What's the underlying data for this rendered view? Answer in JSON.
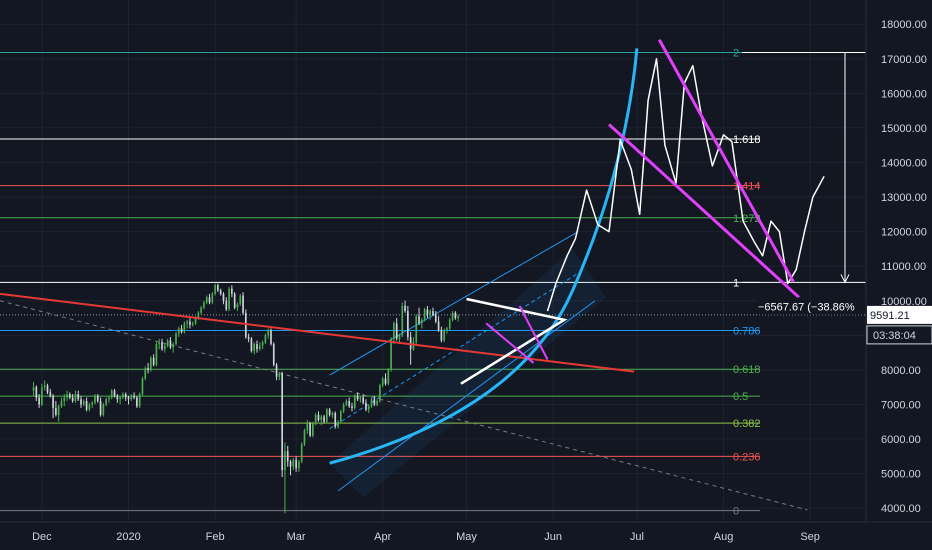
{
  "chart_data": {
    "type": "candlestick",
    "title": "",
    "xlabel": "",
    "ylabel": "",
    "ylim": [
      3600,
      18700
    ],
    "y_ticks": [
      4000,
      5000,
      6000,
      7000,
      8000,
      9000,
      10000,
      11000,
      12000,
      13000,
      14000,
      15000,
      16000,
      17000,
      18000
    ],
    "y_tick_labels": [
      "4000.00",
      "5000.00",
      "6000.00",
      "7000.00",
      "8000.00",
      "9000.00",
      "10000.00",
      "11000.00",
      "12000.00",
      "13000.00",
      "14000.00",
      "15000.00",
      "16000.00",
      "17000.00",
      "18000.00"
    ],
    "x_ticks": [
      {
        "date": "2019-12-01",
        "label": "Dec"
      },
      {
        "date": "2020-01-01",
        "label": "2020"
      },
      {
        "date": "2020-02-01",
        "label": "Feb"
      },
      {
        "date": "2020-03-01",
        "label": "Mar"
      },
      {
        "date": "2020-04-01",
        "label": "Apr"
      },
      {
        "date": "2020-05-01",
        "label": "May"
      },
      {
        "date": "2020-06-01",
        "label": "Jun"
      },
      {
        "date": "2020-07-01",
        "label": "Jul"
      },
      {
        "date": "2020-08-01",
        "label": "Aug"
      },
      {
        "date": "2020-09-01",
        "label": "Sep"
      }
    ],
    "x_range": [
      "2019-11-16",
      "2020-09-21"
    ],
    "fib_levels": [
      {
        "ratio": "2",
        "price": 17180,
        "color": "#26a69a"
      },
      {
        "ratio": "1.618",
        "price": 14680,
        "color": "#ffffff"
      },
      {
        "ratio": "1.414",
        "price": 13330,
        "color": "#ef5350"
      },
      {
        "ratio": "1.272",
        "price": 12400,
        "color": "#4caf50"
      },
      {
        "ratio": "1",
        "price": 10530,
        "color": "#ffffff"
      },
      {
        "ratio": "0.786",
        "price": 9140,
        "color": "#2196f3"
      },
      {
        "ratio": "0.618",
        "price": 8020,
        "color": "#4caf50"
      },
      {
        "ratio": "0.5",
        "price": 7240,
        "color": "#4caf50"
      },
      {
        "ratio": "0.382",
        "price": 6460,
        "color": "#8bc34a"
      },
      {
        "ratio": "0.236",
        "price": 5500,
        "color": "#ef5350"
      },
      {
        "ratio": "0",
        "price": 3930,
        "color": "#787b86"
      }
    ],
    "current_price": {
      "value": "9591.21",
      "countdown": "03:38:04"
    },
    "measure_label": "−6567.67 (−38.86%",
    "candles": [
      [
        7400,
        7650,
        7250,
        7500
      ],
      [
        7500,
        7550,
        7100,
        7200
      ],
      [
        7200,
        7300,
        6900,
        7000
      ],
      [
        7000,
        7600,
        6950,
        7500
      ],
      [
        7500,
        7700,
        7400,
        7550
      ],
      [
        7550,
        7600,
        7300,
        7350
      ],
      [
        7350,
        7450,
        7200,
        7250
      ],
      [
        7250,
        7300,
        6600,
        6900
      ],
      [
        6900,
        7100,
        6650,
        6700
      ],
      [
        6700,
        7000,
        6500,
        6950
      ],
      [
        6950,
        7200,
        6900,
        7100
      ],
      [
        7100,
        7300,
        6950,
        7200
      ],
      [
        7200,
        7400,
        7100,
        7300
      ],
      [
        7300,
        7350,
        7150,
        7200
      ],
      [
        7200,
        7300,
        7050,
        7100
      ],
      [
        7100,
        7400,
        7050,
        7300
      ],
      [
        7300,
        7400,
        7100,
        7150
      ],
      [
        7150,
        7250,
        6900,
        7000
      ],
      [
        7000,
        7150,
        6950,
        7100
      ],
      [
        7100,
        7200,
        6800,
        6850
      ],
      [
        6850,
        7050,
        6800,
        7000
      ],
      [
        7000,
        7100,
        6900,
        7050
      ],
      [
        7050,
        7300,
        7000,
        7250
      ],
      [
        7250,
        7300,
        7050,
        7100
      ],
      [
        7100,
        7200,
        6650,
        6700
      ],
      [
        6700,
        7050,
        6650,
        7000
      ],
      [
        7000,
        7200,
        6950,
        7150
      ],
      [
        7150,
        7250,
        7050,
        7200
      ],
      [
        7200,
        7450,
        7150,
        7400
      ],
      [
        7400,
        7450,
        7200,
        7250
      ],
      [
        7250,
        7300,
        7050,
        7150
      ],
      [
        7150,
        7250,
        7000,
        7200
      ],
      [
        7200,
        7350,
        7150,
        7300
      ],
      [
        7300,
        7350,
        7100,
        7200
      ],
      [
        7200,
        7250,
        7000,
        7150
      ],
      [
        7150,
        7300,
        7100,
        7250
      ],
      [
        7250,
        7350,
        7150,
        7200
      ],
      [
        7200,
        7250,
        6900,
        6950
      ],
      [
        6950,
        7350,
        6900,
        7300
      ],
      [
        7300,
        7800,
        7250,
        7750
      ],
      [
        7750,
        8100,
        7700,
        8050
      ],
      [
        8050,
        8200,
        7900,
        8000
      ],
      [
        8000,
        8400,
        7950,
        8350
      ],
      [
        8350,
        8450,
        8100,
        8150
      ],
      [
        8150,
        8800,
        8100,
        8750
      ],
      [
        8750,
        8900,
        8600,
        8800
      ],
      [
        8800,
        8900,
        8550,
        8600
      ],
      [
        8600,
        8750,
        8500,
        8700
      ],
      [
        8700,
        8900,
        8650,
        8850
      ],
      [
        8850,
        8950,
        8600,
        8650
      ],
      [
        8650,
        8800,
        8500,
        8750
      ],
      [
        8750,
        9100,
        8700,
        9050
      ],
      [
        9050,
        9250,
        8950,
        9200
      ],
      [
        9200,
        9300,
        9050,
        9100
      ],
      [
        9100,
        9400,
        9050,
        9350
      ],
      [
        9350,
        9450,
        9200,
        9400
      ],
      [
        9400,
        9500,
        9200,
        9300
      ],
      [
        9300,
        9400,
        9250,
        9350
      ],
      [
        9350,
        9550,
        9300,
        9500
      ],
      [
        9500,
        9700,
        9450,
        9650
      ],
      [
        9650,
        9850,
        9600,
        9800
      ],
      [
        9800,
        10000,
        9750,
        9950
      ],
      [
        9950,
        10150,
        9900,
        10100
      ],
      [
        10100,
        10200,
        9900,
        9950
      ],
      [
        9950,
        10250,
        9900,
        10200
      ],
      [
        10200,
        10500,
        10150,
        10450
      ],
      [
        10450,
        10500,
        10250,
        10300
      ],
      [
        10300,
        10350,
        10150,
        10200
      ],
      [
        10200,
        10250,
        9900,
        10000
      ],
      [
        10000,
        10100,
        9700,
        9750
      ],
      [
        9750,
        10400,
        9700,
        10350
      ],
      [
        10350,
        10450,
        10100,
        10200
      ],
      [
        10200,
        10250,
        9750,
        9800
      ],
      [
        9800,
        9950,
        9700,
        9900
      ],
      [
        9900,
        10200,
        9850,
        10150
      ],
      [
        10150,
        10250,
        9600,
        9650
      ],
      [
        9650,
        9750,
        8900,
        8950
      ],
      [
        8950,
        9050,
        8800,
        8900
      ],
      [
        8900,
        8950,
        8500,
        8550
      ],
      [
        8550,
        8800,
        8450,
        8750
      ],
      [
        8750,
        8850,
        8500,
        8600
      ],
      [
        8600,
        8800,
        8550,
        8700
      ],
      [
        8700,
        8850,
        8600,
        8800
      ],
      [
        8800,
        9050,
        8750,
        9000
      ],
      [
        9000,
        9200,
        8900,
        9150
      ],
      [
        9150,
        9200,
        8700,
        8750
      ],
      [
        8750,
        8800,
        8100,
        8150
      ],
      [
        8150,
        8200,
        7700,
        7800
      ],
      [
        7800,
        7950,
        7700,
        7900
      ],
      [
        7900,
        7950,
        4900,
        5100
      ],
      [
        5100,
        5900,
        3850,
        5650
      ],
      [
        5650,
        5800,
        5200,
        5350
      ],
      [
        5350,
        5400,
        4950,
        5200
      ],
      [
        5200,
        5450,
        5100,
        5400
      ],
      [
        5400,
        5500,
        5050,
        5150
      ],
      [
        5150,
        5400,
        5050,
        5350
      ],
      [
        5350,
        5900,
        5300,
        5850
      ],
      [
        5850,
        6300,
        5800,
        6250
      ],
      [
        6250,
        6550,
        6150,
        6450
      ],
      [
        6450,
        6500,
        6050,
        6100
      ],
      [
        6100,
        6500,
        6050,
        6450
      ],
      [
        6450,
        6750,
        6400,
        6700
      ],
      [
        6700,
        6800,
        6500,
        6550
      ],
      [
        6550,
        6700,
        6400,
        6650
      ],
      [
        6650,
        6700,
        6450,
        6500
      ],
      [
        6500,
        6900,
        6450,
        6850
      ],
      [
        6850,
        6900,
        6650,
        6700
      ],
      [
        6700,
        6800,
        6600,
        6750
      ],
      [
        6750,
        6800,
        6300,
        6350
      ],
      [
        6350,
        6550,
        6300,
        6500
      ],
      [
        6500,
        6850,
        6450,
        6800
      ],
      [
        6800,
        7050,
        6750,
        7000
      ],
      [
        7000,
        7150,
        6950,
        7100
      ],
      [
        7100,
        7200,
        6900,
        6950
      ],
      [
        6950,
        7050,
        6800,
        6900
      ],
      [
        6900,
        7300,
        6850,
        7250
      ],
      [
        7250,
        7350,
        7100,
        7150
      ],
      [
        7150,
        7250,
        7050,
        7200
      ],
      [
        7200,
        7300,
        7000,
        7050
      ],
      [
        7050,
        7150,
        6800,
        6850
      ],
      [
        6850,
        7000,
        6750,
        6950
      ],
      [
        6950,
        7200,
        6900,
        7150
      ],
      [
        7150,
        7250,
        6950,
        7000
      ],
      [
        7000,
        7150,
        6950,
        7100
      ],
      [
        7100,
        7600,
        7050,
        7550
      ],
      [
        7550,
        7800,
        7500,
        7750
      ],
      [
        7750,
        7900,
        7550,
        7600
      ],
      [
        7600,
        8050,
        7550,
        8000
      ],
      [
        8000,
        8950,
        7950,
        8900
      ],
      [
        8900,
        9400,
        8750,
        9350
      ],
      [
        9350,
        9500,
        8850,
        8900
      ],
      [
        8900,
        9050,
        8750,
        9000
      ],
      [
        9000,
        9950,
        8950,
        9850
      ],
      [
        9850,
        10000,
        9650,
        9700
      ],
      [
        9700,
        9850,
        8850,
        8950
      ],
      [
        8950,
        9100,
        8150,
        8600
      ],
      [
        8600,
        8950,
        8550,
        8800
      ],
      [
        8800,
        9600,
        8750,
        9550
      ],
      [
        9550,
        9800,
        9300,
        9350
      ],
      [
        9350,
        9500,
        9200,
        9450
      ],
      [
        9450,
        9800,
        9400,
        9750
      ],
      [
        9750,
        9850,
        9500,
        9600
      ],
      [
        9600,
        9750,
        9450,
        9700
      ],
      [
        9700,
        9800,
        9550,
        9600
      ],
      [
        9600,
        9700,
        9350,
        9400
      ],
      [
        9400,
        9550,
        9100,
        9150
      ],
      [
        9150,
        9250,
        8800,
        8850
      ],
      [
        8850,
        9200,
        8800,
        9150
      ],
      [
        9150,
        9250,
        9050,
        9200
      ],
      [
        9200,
        9500,
        9150,
        9450
      ],
      [
        9450,
        9700,
        9400,
        9650
      ],
      [
        9650,
        9700,
        9450,
        9500
      ],
      [
        9500,
        9600,
        9400,
        9550
      ]
    ],
    "candle_start": "2019-11-28",
    "annotations": {
      "projection_path": [
        [
          "2020-05-30",
          9700
        ],
        [
          "2020-06-02",
          10500
        ],
        [
          "2020-06-06",
          11300
        ],
        [
          "2020-06-09",
          11800
        ],
        [
          "2020-06-13",
          13200
        ],
        [
          "2020-06-17",
          12200
        ],
        [
          "2020-06-21",
          12000
        ],
        [
          "2020-06-25",
          14650
        ],
        [
          "2020-06-29",
          13800
        ],
        [
          "2020-07-02",
          12500
        ],
        [
          "2020-07-05",
          15800
        ],
        [
          "2020-07-08",
          17000
        ],
        [
          "2020-07-11",
          14500
        ],
        [
          "2020-07-15",
          13400
        ],
        [
          "2020-07-18",
          16300
        ],
        [
          "2020-07-21",
          16800
        ],
        [
          "2020-07-24",
          15400
        ],
        [
          "2020-07-28",
          13900
        ],
        [
          "2020-08-01",
          14800
        ],
        [
          "2020-08-04",
          14600
        ],
        [
          "2020-08-08",
          12300
        ],
        [
          "2020-08-12",
          11700
        ],
        [
          "2020-08-15",
          11300
        ],
        [
          "2020-08-18",
          12300
        ],
        [
          "2020-08-21",
          12000
        ],
        [
          "2020-08-24",
          10500
        ],
        [
          "2020-08-27",
          10900
        ],
        [
          "2020-08-30",
          12000
        ],
        [
          "2020-09-02",
          13000
        ],
        [
          "2020-09-06",
          13600
        ]
      ]
    }
  }
}
